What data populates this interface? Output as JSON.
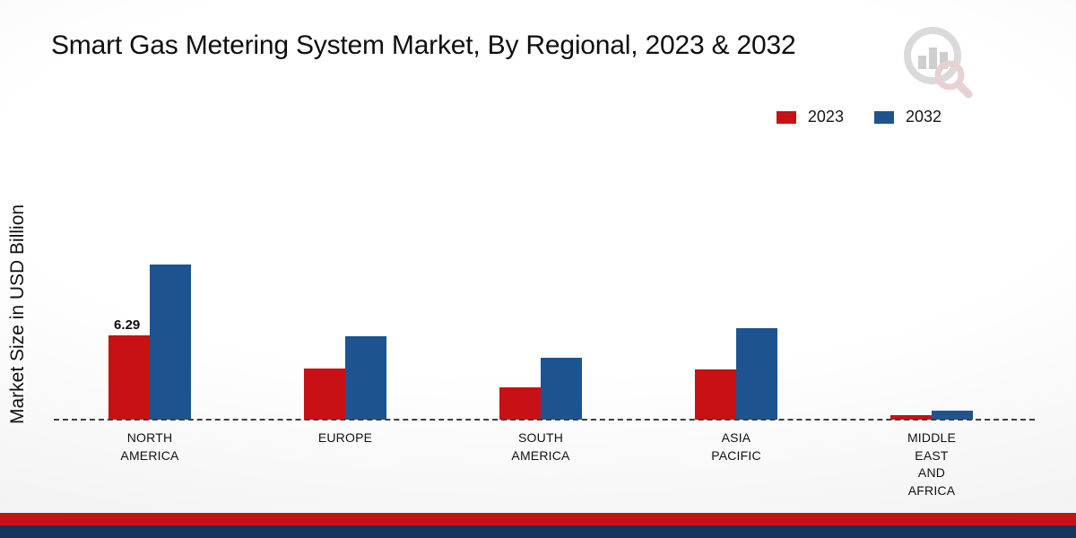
{
  "page": {
    "title": "Smart Gas Metering System Market, By Regional, 2023 & 2032"
  },
  "theme": {
    "series_2023_red": "#c81114",
    "series_2032_blue": "#1d548f",
    "footer_red": "#c81114",
    "footer_navy": "#16355e",
    "baseline_dash_color": "#3f3f3f"
  },
  "chart_data": {
    "type": "bar",
    "title": "Smart Gas Metering System Market, By Regional, 2023 & 2032",
    "xlabel": "",
    "ylabel": "Market Size in USD Billion",
    "unit": "USD Billion",
    "categories": [
      "NORTH\nAMERICA",
      "EUROPE",
      "SOUTH\nAMERICA",
      "ASIA\nPACIFIC",
      "MIDDLE\nEAST\nAND\nAFRICA"
    ],
    "series": [
      {
        "name": "2023",
        "color": "#c81114",
        "values": [
          6.29,
          3.8,
          2.4,
          3.7,
          0.3
        ],
        "data_labels": [
          "6.29",
          null,
          null,
          null,
          null
        ]
      },
      {
        "name": "2032",
        "color": "#1d548f",
        "values": [
          11.5,
          6.2,
          4.6,
          6.8,
          0.65
        ],
        "data_labels": [
          null,
          null,
          null,
          null,
          null
        ]
      }
    ],
    "ylim": [
      0,
      12
    ],
    "grid": false,
    "legend_position": "top-right",
    "x_axis_style": "dashed-baseline",
    "y_axis_ticks_visible": false
  }
}
